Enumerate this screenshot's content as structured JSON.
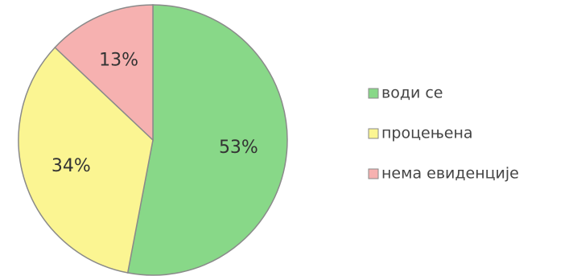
{
  "chart_data": {
    "type": "pie",
    "categories": [
      "води се",
      "процењена",
      "нема евиденције"
    ],
    "values": [
      53,
      34,
      13
    ],
    "value_labels": [
      "53%",
      "34%",
      "13%"
    ],
    "colors": [
      "#88d888",
      "#fbf592",
      "#f6b1b0"
    ],
    "border_color": "#8a8a8a",
    "start_angle_deg": 0,
    "direction": "clockwise",
    "legend_position": "right"
  }
}
